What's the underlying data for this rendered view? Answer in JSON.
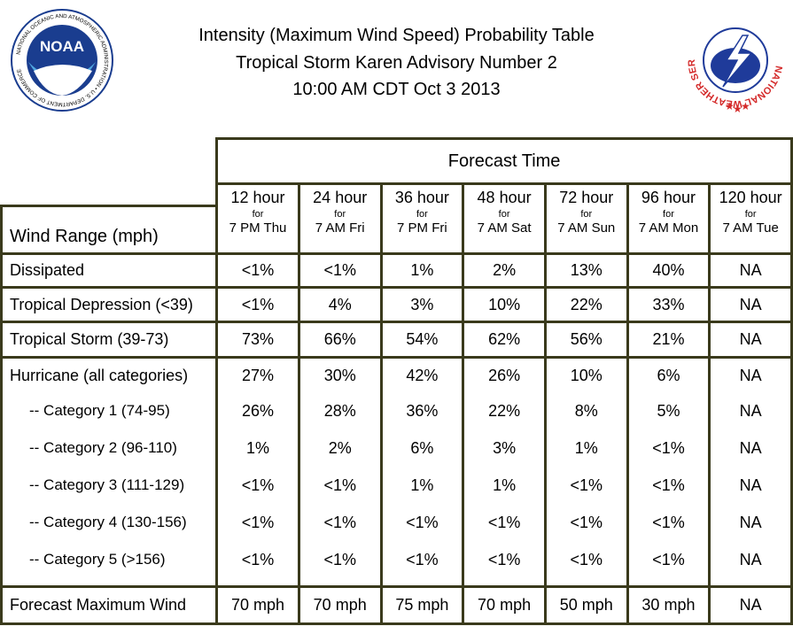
{
  "header": {
    "title_line1": "Intensity (Maximum Wind Speed) Probability Table",
    "title_line2": "Tropical Storm Karen Advisory Number 2",
    "title_line3": "10:00 AM CDT Oct 3 2013",
    "noaa_logo_text": "NOAA",
    "noaa_ring_text": "NATIONAL OCEANIC AND ATMOSPHERIC ADMINISTRATION • U.S. DEPARTMENT OF COMMERCE",
    "nws_ring_text": "NATIONAL WEATHER SERVICE",
    "colors": {
      "noaa_blue": "#1a3d8f",
      "nws_red": "#d42a2a",
      "nws_blue": "#1f3b9a",
      "border": "#3a3a1c"
    }
  },
  "table": {
    "forecast_time_label": "Forecast Time",
    "wind_range_label": "Wind Range (mph)",
    "columns": [
      {
        "hour": "12 hour",
        "for": "for",
        "time": "7 PM Thu"
      },
      {
        "hour": "24 hour",
        "for": "for",
        "time": "7 AM Fri"
      },
      {
        "hour": "36 hour",
        "for": "for",
        "time": "7 PM Fri"
      },
      {
        "hour": "48 hour",
        "for": "for",
        "time": "7 AM Sat"
      },
      {
        "hour": "72 hour",
        "for": "for",
        "time": "7 AM Sun"
      },
      {
        "hour": "96 hour",
        "for": "for",
        "time": "7 AM Mon"
      },
      {
        "hour": "120 hour",
        "for": "for",
        "time": "7 AM Tue"
      }
    ],
    "rows": {
      "dissipated": {
        "label": "Dissipated",
        "values": [
          "<1%",
          "<1%",
          "1%",
          "2%",
          "13%",
          "40%",
          "NA"
        ]
      },
      "td": {
        "label": "Tropical Depression (<39)",
        "values": [
          "<1%",
          "4%",
          "3%",
          "10%",
          "22%",
          "33%",
          "NA"
        ]
      },
      "ts": {
        "label": "Tropical Storm (39-73)",
        "values": [
          "73%",
          "66%",
          "54%",
          "62%",
          "56%",
          "21%",
          "NA"
        ]
      },
      "hurricane": {
        "label": "Hurricane (all categories)",
        "values": [
          "27%",
          "30%",
          "42%",
          "26%",
          "10%",
          "6%",
          "NA"
        ]
      },
      "cat1": {
        "label": "-- Category 1 (74-95)",
        "values": [
          "26%",
          "28%",
          "36%",
          "22%",
          "8%",
          "5%",
          "NA"
        ]
      },
      "cat2": {
        "label": "-- Category 2 (96-110)",
        "values": [
          "1%",
          "2%",
          "6%",
          "3%",
          "1%",
          "<1%",
          "NA"
        ]
      },
      "cat3": {
        "label": "-- Category 3 (111-129)",
        "values": [
          "<1%",
          "<1%",
          "1%",
          "1%",
          "<1%",
          "<1%",
          "NA"
        ]
      },
      "cat4": {
        "label": "-- Category 4 (130-156)",
        "values": [
          "<1%",
          "<1%",
          "<1%",
          "<1%",
          "<1%",
          "<1%",
          "NA"
        ]
      },
      "cat5": {
        "label": "-- Category 5 (>156)",
        "values": [
          "<1%",
          "<1%",
          "<1%",
          "<1%",
          "<1%",
          "<1%",
          "NA"
        ]
      },
      "maxwind": {
        "label": "Forecast Maximum Wind",
        "values": [
          "70 mph",
          "70 mph",
          "75 mph",
          "70 mph",
          "50 mph",
          "30 mph",
          "NA"
        ]
      }
    }
  }
}
